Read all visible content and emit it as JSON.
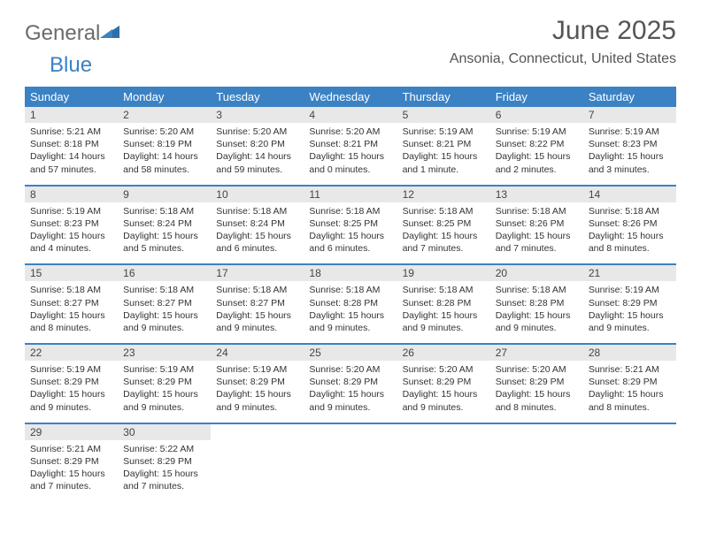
{
  "logo": {
    "general": "General",
    "blue": "Blue"
  },
  "title": "June 2025",
  "location": "Ansonia, Connecticut, United States",
  "colors": {
    "header_bg": "#3b82c4",
    "header_text": "#ffffff",
    "daynum_bg": "#e8e8e8",
    "text": "#333333",
    "rule": "#3b82c4"
  },
  "weekdays": [
    "Sunday",
    "Monday",
    "Tuesday",
    "Wednesday",
    "Thursday",
    "Friday",
    "Saturday"
  ],
  "weeks": [
    [
      {
        "n": "1",
        "sr": "Sunrise: 5:21 AM",
        "ss": "Sunset: 8:18 PM",
        "d1": "Daylight: 14 hours",
        "d2": "and 57 minutes."
      },
      {
        "n": "2",
        "sr": "Sunrise: 5:20 AM",
        "ss": "Sunset: 8:19 PM",
        "d1": "Daylight: 14 hours",
        "d2": "and 58 minutes."
      },
      {
        "n": "3",
        "sr": "Sunrise: 5:20 AM",
        "ss": "Sunset: 8:20 PM",
        "d1": "Daylight: 14 hours",
        "d2": "and 59 minutes."
      },
      {
        "n": "4",
        "sr": "Sunrise: 5:20 AM",
        "ss": "Sunset: 8:21 PM",
        "d1": "Daylight: 15 hours",
        "d2": "and 0 minutes."
      },
      {
        "n": "5",
        "sr": "Sunrise: 5:19 AM",
        "ss": "Sunset: 8:21 PM",
        "d1": "Daylight: 15 hours",
        "d2": "and 1 minute."
      },
      {
        "n": "6",
        "sr": "Sunrise: 5:19 AM",
        "ss": "Sunset: 8:22 PM",
        "d1": "Daylight: 15 hours",
        "d2": "and 2 minutes."
      },
      {
        "n": "7",
        "sr": "Sunrise: 5:19 AM",
        "ss": "Sunset: 8:23 PM",
        "d1": "Daylight: 15 hours",
        "d2": "and 3 minutes."
      }
    ],
    [
      {
        "n": "8",
        "sr": "Sunrise: 5:19 AM",
        "ss": "Sunset: 8:23 PM",
        "d1": "Daylight: 15 hours",
        "d2": "and 4 minutes."
      },
      {
        "n": "9",
        "sr": "Sunrise: 5:18 AM",
        "ss": "Sunset: 8:24 PM",
        "d1": "Daylight: 15 hours",
        "d2": "and 5 minutes."
      },
      {
        "n": "10",
        "sr": "Sunrise: 5:18 AM",
        "ss": "Sunset: 8:24 PM",
        "d1": "Daylight: 15 hours",
        "d2": "and 6 minutes."
      },
      {
        "n": "11",
        "sr": "Sunrise: 5:18 AM",
        "ss": "Sunset: 8:25 PM",
        "d1": "Daylight: 15 hours",
        "d2": "and 6 minutes."
      },
      {
        "n": "12",
        "sr": "Sunrise: 5:18 AM",
        "ss": "Sunset: 8:25 PM",
        "d1": "Daylight: 15 hours",
        "d2": "and 7 minutes."
      },
      {
        "n": "13",
        "sr": "Sunrise: 5:18 AM",
        "ss": "Sunset: 8:26 PM",
        "d1": "Daylight: 15 hours",
        "d2": "and 7 minutes."
      },
      {
        "n": "14",
        "sr": "Sunrise: 5:18 AM",
        "ss": "Sunset: 8:26 PM",
        "d1": "Daylight: 15 hours",
        "d2": "and 8 minutes."
      }
    ],
    [
      {
        "n": "15",
        "sr": "Sunrise: 5:18 AM",
        "ss": "Sunset: 8:27 PM",
        "d1": "Daylight: 15 hours",
        "d2": "and 8 minutes."
      },
      {
        "n": "16",
        "sr": "Sunrise: 5:18 AM",
        "ss": "Sunset: 8:27 PM",
        "d1": "Daylight: 15 hours",
        "d2": "and 9 minutes."
      },
      {
        "n": "17",
        "sr": "Sunrise: 5:18 AM",
        "ss": "Sunset: 8:27 PM",
        "d1": "Daylight: 15 hours",
        "d2": "and 9 minutes."
      },
      {
        "n": "18",
        "sr": "Sunrise: 5:18 AM",
        "ss": "Sunset: 8:28 PM",
        "d1": "Daylight: 15 hours",
        "d2": "and 9 minutes."
      },
      {
        "n": "19",
        "sr": "Sunrise: 5:18 AM",
        "ss": "Sunset: 8:28 PM",
        "d1": "Daylight: 15 hours",
        "d2": "and 9 minutes."
      },
      {
        "n": "20",
        "sr": "Sunrise: 5:18 AM",
        "ss": "Sunset: 8:28 PM",
        "d1": "Daylight: 15 hours",
        "d2": "and 9 minutes."
      },
      {
        "n": "21",
        "sr": "Sunrise: 5:19 AM",
        "ss": "Sunset: 8:29 PM",
        "d1": "Daylight: 15 hours",
        "d2": "and 9 minutes."
      }
    ],
    [
      {
        "n": "22",
        "sr": "Sunrise: 5:19 AM",
        "ss": "Sunset: 8:29 PM",
        "d1": "Daylight: 15 hours",
        "d2": "and 9 minutes."
      },
      {
        "n": "23",
        "sr": "Sunrise: 5:19 AM",
        "ss": "Sunset: 8:29 PM",
        "d1": "Daylight: 15 hours",
        "d2": "and 9 minutes."
      },
      {
        "n": "24",
        "sr": "Sunrise: 5:19 AM",
        "ss": "Sunset: 8:29 PM",
        "d1": "Daylight: 15 hours",
        "d2": "and 9 minutes."
      },
      {
        "n": "25",
        "sr": "Sunrise: 5:20 AM",
        "ss": "Sunset: 8:29 PM",
        "d1": "Daylight: 15 hours",
        "d2": "and 9 minutes."
      },
      {
        "n": "26",
        "sr": "Sunrise: 5:20 AM",
        "ss": "Sunset: 8:29 PM",
        "d1": "Daylight: 15 hours",
        "d2": "and 9 minutes."
      },
      {
        "n": "27",
        "sr": "Sunrise: 5:20 AM",
        "ss": "Sunset: 8:29 PM",
        "d1": "Daylight: 15 hours",
        "d2": "and 8 minutes."
      },
      {
        "n": "28",
        "sr": "Sunrise: 5:21 AM",
        "ss": "Sunset: 8:29 PM",
        "d1": "Daylight: 15 hours",
        "d2": "and 8 minutes."
      }
    ],
    [
      {
        "n": "29",
        "sr": "Sunrise: 5:21 AM",
        "ss": "Sunset: 8:29 PM",
        "d1": "Daylight: 15 hours",
        "d2": "and 7 minutes."
      },
      {
        "n": "30",
        "sr": "Sunrise: 5:22 AM",
        "ss": "Sunset: 8:29 PM",
        "d1": "Daylight: 15 hours",
        "d2": "and 7 minutes."
      },
      null,
      null,
      null,
      null,
      null
    ]
  ]
}
